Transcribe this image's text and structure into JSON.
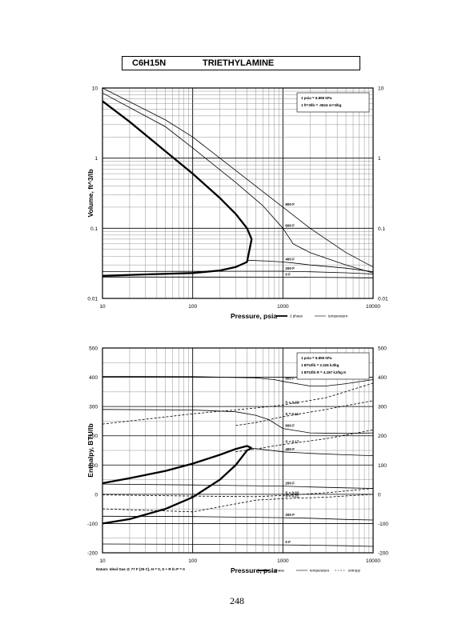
{
  "header": {
    "formula": "C6H15N",
    "name": "TRIETHYLAMINE"
  },
  "page_number": "248",
  "footer_note": "Datum: Ideal Gas @ 77 F (25 C), H = 0, S + R ln P = 0",
  "chart_data": [
    {
      "type": "line",
      "xlabel": "Pressure, psia",
      "ylabel": "Volume, ft^3/lb",
      "xscale": "log",
      "yscale": "log",
      "xlim": [
        10,
        10000
      ],
      "ylim": [
        0.01,
        10
      ],
      "x_ticks": [
        "10",
        "100",
        "1000",
        "10000"
      ],
      "y_ticks": [
        "10",
        "1",
        "0.1",
        "0.01"
      ],
      "grid": true,
      "legend": [
        "2 phase",
        "temperature"
      ],
      "conversions": [
        "1 psia = 6.895 kPa",
        "1 ft^3/lb = .0624 m^3/kg"
      ],
      "series": [
        {
          "kind": "2 phase",
          "x": [
            10,
            20,
            50,
            100,
            200,
            300,
            400,
            450
          ],
          "y": [
            6.5,
            3.3,
            1.25,
            0.6,
            0.27,
            0.16,
            0.1,
            0.07
          ]
        },
        {
          "kind": "2 phase",
          "x": [
            10,
            30,
            100,
            200,
            300,
            400,
            450
          ],
          "y": [
            0.021,
            0.022,
            0.023,
            0.025,
            0.028,
            0.033,
            0.07
          ]
        },
        {
          "kind": "temperature",
          "label": "800 F",
          "x": [
            10,
            50,
            100,
            500,
            1000,
            2000,
            5000,
            10000
          ],
          "y": [
            10,
            3.5,
            2,
            0.4,
            0.2,
            0.1,
            0.045,
            0.028
          ]
        },
        {
          "kind": "temperature",
          "label": "600 F",
          "x": [
            10,
            50,
            100,
            300,
            600,
            1000,
            1300,
            2000,
            5000,
            10000
          ],
          "y": [
            8.5,
            2.8,
            1.4,
            0.45,
            0.21,
            0.1,
            0.06,
            0.045,
            0.03,
            0.023
          ]
        },
        {
          "kind": "temperature",
          "label": "400 F",
          "x": [
            400,
            700,
            1000,
            1300,
            2000,
            5000,
            10000
          ],
          "y": [
            0.035,
            0.034,
            0.033,
            0.032,
            0.03,
            0.027,
            0.024
          ]
        },
        {
          "kind": "temperature",
          "label": "200 F",
          "x": [
            10,
            100,
            1000,
            1300,
            2000,
            5000,
            10000
          ],
          "y": [
            0.0242,
            0.0243,
            0.0244,
            0.0242,
            0.024,
            0.0232,
            0.0223
          ]
        },
        {
          "kind": "temperature",
          "label": "0 F",
          "x": [
            10,
            1000,
            1300,
            2000,
            5000,
            10000
          ],
          "y": [
            0.0202,
            0.0201,
            0.0201,
            0.02,
            0.0198,
            0.0195
          ]
        }
      ]
    },
    {
      "type": "line",
      "xlabel": "Pressure, psia",
      "ylabel": "Enthalpy, BTU/lb",
      "xscale": "log",
      "xlim": [
        10,
        10000
      ],
      "ylim": [
        -200,
        500
      ],
      "x_ticks": [
        "10",
        "100",
        "1000",
        "10000"
      ],
      "y_ticks": [
        "500",
        "400",
        "300",
        "200",
        "100",
        "0",
        "-100",
        "-200"
      ],
      "grid": true,
      "legend": [
        "2 phase",
        "temperature",
        "entropy"
      ],
      "conversions": [
        "1 psia = 6.895 kPa",
        "1 BTU/lb = 2.326 kJ/kg",
        "1 BTU/lb R = 4.187 kJ/kg K"
      ],
      "series": [
        {
          "kind": "2 phase",
          "x": [
            10,
            20,
            50,
            100,
            200,
            300,
            400,
            450
          ],
          "y": [
            38,
            55,
            80,
            105,
            135,
            155,
            165,
            158
          ]
        },
        {
          "kind": "2 phase",
          "x": [
            10,
            20,
            50,
            100,
            200,
            300,
            400,
            450
          ],
          "y": [
            -100,
            -85,
            -50,
            -10,
            50,
            100,
            150,
            158
          ]
        },
        {
          "kind": "temperature",
          "label": "800 F",
          "x": [
            10,
            100,
            500,
            800,
            1000,
            2000,
            3000,
            5000,
            10000
          ],
          "y": [
            403,
            402,
            398,
            392,
            386,
            370,
            370,
            378,
            392
          ]
        },
        {
          "kind": "temperature",
          "label": "600 F",
          "x": [
            10,
            100,
            300,
            500,
            700,
            1000,
            2000,
            5000,
            10000
          ],
          "y": [
            290,
            288,
            282,
            270,
            255,
            225,
            210,
            208,
            210
          ]
        },
        {
          "kind": "temperature",
          "label": "400 F",
          "x": [
            450,
            1000,
            2000,
            5000,
            10000
          ],
          "y": [
            158,
            145,
            140,
            135,
            132
          ]
        },
        {
          "kind": "temperature",
          "label": "200 F",
          "x": [
            10,
            100,
            1000,
            2000,
            5000,
            10000
          ],
          "y": [
            35,
            32,
            28,
            25,
            22,
            20
          ]
        },
        {
          "kind": "temperature",
          "label": "200 F",
          "x": [
            10,
            100,
            1000,
            2000,
            5000,
            10000
          ],
          "y": [
            -75,
            -76,
            -80,
            -82,
            -86,
            -88
          ]
        },
        {
          "kind": "temperature",
          "label": "0 F",
          "x": [
            10,
            100,
            1000,
            2000,
            5000,
            10000
          ],
          "y": [
            -170,
            -171,
            -173,
            -174,
            -176,
            -178
          ]
        },
        {
          "kind": "entropy",
          "label": "S = 0.32",
          "x": [
            10,
            100,
            500,
            1000,
            3000,
            10000
          ],
          "y": [
            240,
            275,
            295,
            305,
            330,
            380
          ]
        },
        {
          "kind": "entropy",
          "label": "S = 0.21",
          "x": [
            10,
            100,
            500,
            1000,
            3000,
            10000
          ],
          "y": [
            -50,
            -60,
            -20,
            -15,
            -10,
            0
          ]
        },
        {
          "kind": "entropy",
          "label": "S = 0.17",
          "x": [
            300,
            500,
            1000,
            3000,
            10000
          ],
          "y": [
            145,
            155,
            170,
            190,
            220
          ]
        },
        {
          "kind": "entropy",
          "label": "S = 0.02",
          "x": [
            10,
            100,
            500,
            1000,
            3000,
            10000
          ],
          "y": [
            -2,
            -6,
            -8,
            -4,
            5,
            20
          ]
        },
        {
          "kind": "entropy",
          "label": "S = 0.11",
          "x": [
            300,
            500,
            1000,
            3000,
            10000
          ],
          "y": [
            235,
            245,
            265,
            290,
            320
          ]
        }
      ]
    }
  ]
}
